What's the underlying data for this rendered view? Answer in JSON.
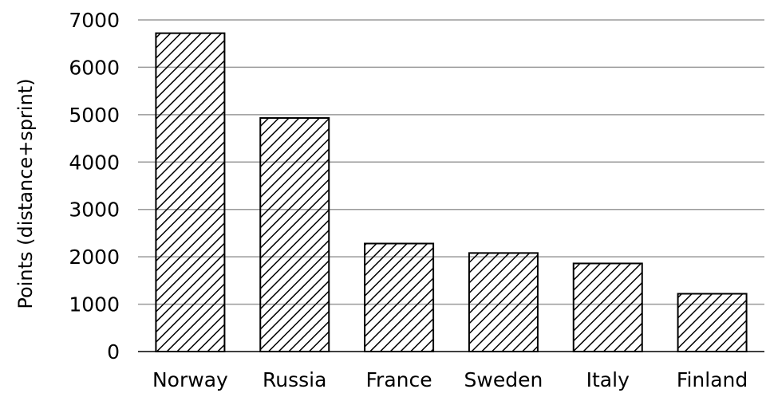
{
  "chart_data": {
    "type": "bar",
    "title": "",
    "xlabel": "",
    "ylabel": "Points (distance+sprint)",
    "categories": [
      "Norway",
      "Russia",
      "France",
      "Sweden",
      "Italy",
      "Finland"
    ],
    "values": [
      6720,
      4930,
      2280,
      2080,
      1860,
      1220
    ],
    "ylim": [
      0,
      7000
    ],
    "yticks": [
      "0",
      "1000",
      "2000",
      "3000",
      "4000",
      "5000",
      "6000",
      "7000"
    ],
    "grid": true,
    "legend": "none",
    "bar_fill": "diagonal-hatch",
    "colors": {
      "bar_stroke": "#000000",
      "hatch": "#000000",
      "grid": "#9a9a9a",
      "background": "#ffffff"
    }
  }
}
